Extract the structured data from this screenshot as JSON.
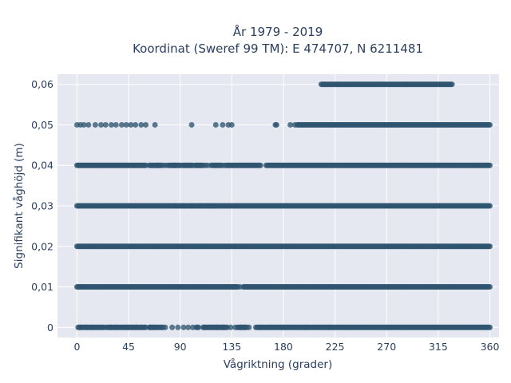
{
  "chart_data": {
    "type": "scatter",
    "title": "År 1979 - 2019",
    "subtitle": "Koordinat (Sweref 99 TM): E 474707, N 6211481",
    "xlabel": "Vågriktning (grader)",
    "ylabel": "Signifikant våghöjd (m)",
    "xlim": [
      -17,
      368
    ],
    "ylim": [
      -0.0025,
      0.0625
    ],
    "x_ticks": [
      0,
      45,
      90,
      135,
      180,
      225,
      270,
      315,
      360
    ],
    "x_tick_labels": [
      "0",
      "45",
      "90",
      "135",
      "180",
      "225",
      "270",
      "315",
      "360"
    ],
    "y_ticks": [
      0,
      0.01,
      0.02,
      0.03,
      0.04,
      0.05,
      0.06
    ],
    "y_tick_labels": [
      "0",
      "0,01",
      "0,02",
      "0,03",
      "0,04",
      "0,05",
      "0,06"
    ],
    "grid": true,
    "marker_color": "#2f5470",
    "background_color": "#e5e8f1",
    "series": [
      {
        "y": 0,
        "ranges": [
          [
            1,
            24
          ],
          [
            26,
            60
          ],
          [
            63,
            75
          ],
          [
            104,
            106
          ],
          [
            110,
            130
          ],
          [
            140,
            148
          ],
          [
            156,
            360
          ]
        ],
        "points": [
          3,
          8,
          12,
          29,
          35,
          44,
          52,
          64,
          68,
          77,
          83,
          88,
          93,
          97,
          101,
          111,
          117,
          122,
          127,
          131,
          134,
          138,
          143,
          146,
          150,
          160,
          168,
          200,
          220
        ]
      },
      {
        "y": 0.01,
        "ranges": [
          [
            0,
            140
          ],
          [
            145,
            360
          ]
        ],
        "points": [
          142
        ]
      },
      {
        "y": 0.02,
        "ranges": [
          [
            0,
            360
          ]
        ],
        "points": []
      },
      {
        "y": 0.03,
        "ranges": [
          [
            0,
            360
          ]
        ],
        "points": [
          85,
          93,
          100,
          107,
          114,
          120
        ]
      },
      {
        "y": 0.04,
        "ranges": [
          [
            0,
            60
          ],
          [
            63,
            74
          ],
          [
            80,
            90
          ],
          [
            93,
            100
          ],
          [
            103,
            110
          ],
          [
            117,
            125
          ],
          [
            130,
            155
          ],
          [
            157,
            160
          ],
          [
            165,
            360
          ]
        ],
        "points": [
          70,
          76,
          78,
          85,
          92,
          101,
          112,
          114,
          126,
          128,
          156
        ]
      },
      {
        "y": 0.05,
        "ranges": [
          [
            192,
            360
          ]
        ],
        "points": [
          0,
          3,
          6,
          10,
          16,
          21,
          25,
          30,
          34,
          39,
          43,
          47,
          51,
          56,
          60,
          68,
          100,
          121,
          127,
          132,
          135,
          173,
          174,
          186,
          190
        ]
      },
      {
        "y": 0.06,
        "ranges": [
          [
            213,
            327
          ]
        ],
        "points": []
      }
    ]
  }
}
